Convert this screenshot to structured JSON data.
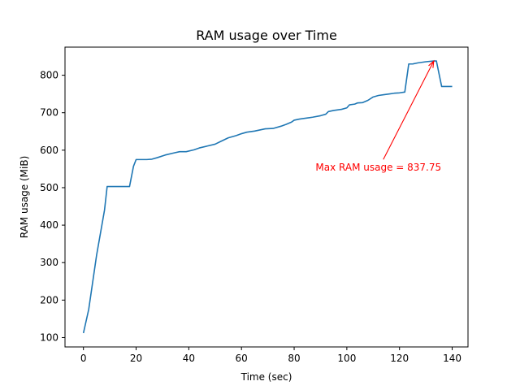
{
  "chart_data": {
    "type": "line",
    "title": "RAM usage over Time",
    "xlabel": "Time (sec)",
    "ylabel": "RAM usage (MiB)",
    "xlim": [
      -7,
      146
    ],
    "ylim": [
      75,
      875
    ],
    "xticks": [
      0,
      20,
      40,
      60,
      80,
      100,
      120,
      140
    ],
    "yticks": [
      100,
      200,
      300,
      400,
      500,
      600,
      700,
      800
    ],
    "grid": false,
    "series": [
      {
        "color": "#1f77b4",
        "x": [
          0,
          2,
          5,
          8,
          9,
          12,
          15,
          17.5,
          19,
          20,
          22,
          24,
          26,
          28,
          31,
          34,
          36.5,
          39,
          42,
          44,
          47,
          50,
          52,
          55,
          58,
          60,
          62,
          65,
          67,
          69,
          72,
          75,
          77,
          79,
          80,
          82,
          85,
          87,
          90,
          92,
          93,
          95,
          98,
          100,
          101,
          103,
          104,
          106,
          108,
          110,
          112,
          114,
          116,
          118,
          120,
          122,
          123.5,
          125,
          127,
          130,
          133,
          134,
          136,
          140
        ],
        "y": [
          112,
          175,
          320,
          440,
          503,
          503,
          503,
          503,
          557,
          575,
          575,
          575,
          576,
          580,
          587,
          592,
          596,
          596,
          601,
          606,
          611,
          616,
          623,
          633,
          639,
          644,
          648,
          651,
          654,
          657,
          658,
          664,
          669,
          675,
          680,
          683,
          686,
          688,
          692,
          696,
          703,
          706,
          709,
          713,
          721,
          723,
          726,
          727,
          733,
          742,
          746,
          748,
          750,
          752,
          753,
          755,
          830,
          830,
          833,
          836,
          838,
          838,
          770,
          770
        ]
      }
    ],
    "annotation": {
      "text": "Max RAM usage = 837.75",
      "color": "#ff0000",
      "point": [
        133,
        837.75
      ],
      "text_anchor_xy": [
        112,
        545
      ]
    }
  }
}
